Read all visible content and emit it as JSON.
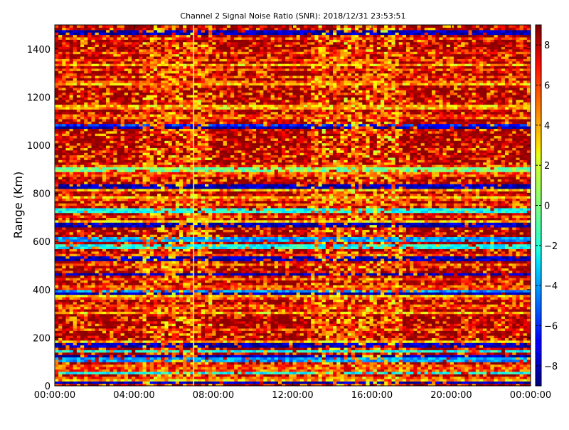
{
  "chart_data": {
    "type": "heatmap",
    "title": "Channel 2 Signal Noise Ratio (SNR): 2018/12/31 23:53:51",
    "xlabel": "",
    "ylabel": "Range (Km)",
    "x_range_hours": [
      0,
      24
    ],
    "x_tick_labels": [
      "00:00:00",
      "04:00:00",
      "08:00:00",
      "12:00:00",
      "16:00:00",
      "20:00:00",
      "00:00:00"
    ],
    "x_tick_hours": [
      0,
      4,
      8,
      12,
      16,
      20,
      24
    ],
    "ylim": [
      0,
      1500
    ],
    "y_ticks": [
      0,
      200,
      400,
      600,
      800,
      1000,
      1200,
      1400
    ],
    "colorbar": {
      "colormap": "jet",
      "range": [
        -9,
        9
      ],
      "ticks": [
        -8,
        -6,
        -4,
        -2,
        0,
        2,
        4,
        6,
        8
      ],
      "tick_labels": [
        "−8",
        "−6",
        "−4",
        "−2",
        "0",
        "2",
        "4",
        "6",
        "8"
      ]
    },
    "vertical_marker_hour": 7.0,
    "low_snr_bands_km": [
      {
        "range_km": 1470,
        "snr": -8
      },
      {
        "range_km": 1085,
        "snr": -6
      },
      {
        "range_km": 1075,
        "snr": -8
      },
      {
        "range_km": 900,
        "snr": 0
      },
      {
        "range_km": 830,
        "snr": -8
      },
      {
        "range_km": 730,
        "snr": -2
      },
      {
        "range_km": 670,
        "snr": -8
      },
      {
        "range_km": 610,
        "snr": -4
      },
      {
        "range_km": 580,
        "snr": -2
      },
      {
        "range_km": 530,
        "snr": -8
      },
      {
        "range_km": 463,
        "snr": -8
      },
      {
        "range_km": 395,
        "snr": -4
      },
      {
        "range_km": 385,
        "snr": -8
      },
      {
        "range_km": 170,
        "snr": -8
      },
      {
        "range_km": 145,
        "snr": -2
      },
      {
        "range_km": 125,
        "snr": -8
      },
      {
        "range_km": 110,
        "snr": -4
      },
      {
        "range_km": 55,
        "snr": -2
      },
      {
        "range_km": 15,
        "snr": -8
      }
    ],
    "high_variability_hours": [
      [
        4.5,
        8.0
      ],
      [
        13.0,
        17.5
      ]
    ]
  }
}
